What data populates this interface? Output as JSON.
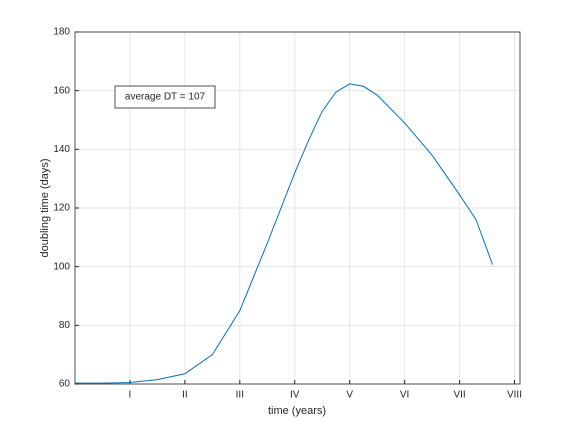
{
  "chart_data": {
    "type": "line",
    "x_label": "time (years)",
    "y_label": "doubling time (days)",
    "annotation": "average DT = 107",
    "x": [
      0,
      0.5,
      1,
      1.5,
      2,
      2.5,
      3,
      3.5,
      4,
      4.25,
      4.5,
      4.75,
      5,
      5.25,
      5.5,
      6,
      6.5,
      7,
      7.3,
      7.6
    ],
    "series": [
      {
        "color": "#0072bd",
        "values": [
          60.3,
          60.3,
          60.5,
          61.5,
          63.5,
          70,
          85,
          108,
          132,
          143,
          153,
          159.5,
          162.3,
          161.5,
          158.5,
          149,
          138,
          124.5,
          116,
          100.7
        ]
      }
    ],
    "xlim": [
      0,
      8.1
    ],
    "ylim": [
      60,
      180
    ],
    "xticks": [
      {
        "value": 1,
        "label": "I"
      },
      {
        "value": 2,
        "label": "II"
      },
      {
        "value": 3,
        "label": "III"
      },
      {
        "value": 4,
        "label": "IV"
      },
      {
        "value": 5,
        "label": "V"
      },
      {
        "value": 6,
        "label": "VI"
      },
      {
        "value": 7,
        "label": "VII"
      },
      {
        "value": 8,
        "label": "VIII"
      }
    ],
    "yticks": [
      60,
      80,
      100,
      120,
      140,
      160,
      180
    ],
    "grid": true
  }
}
